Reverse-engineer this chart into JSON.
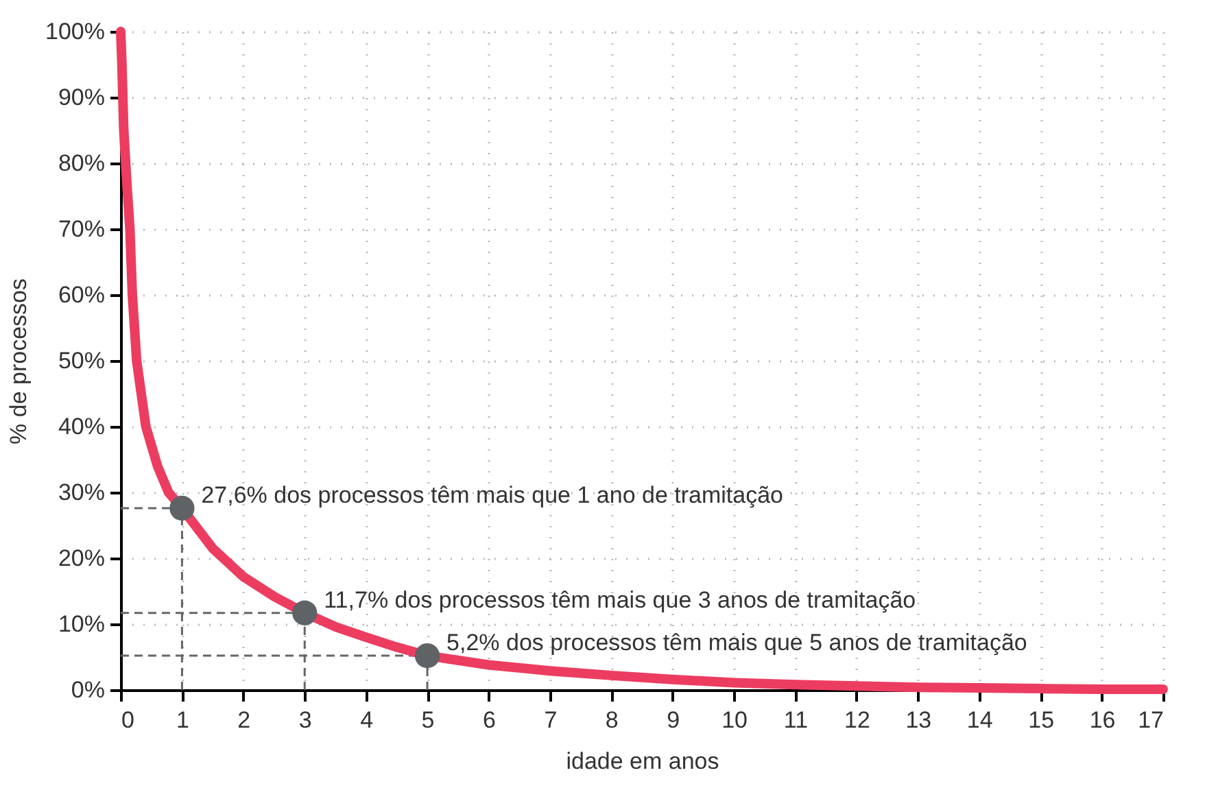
{
  "chart_data": {
    "type": "line",
    "xlabel": "idade em anos",
    "ylabel": "% de processos",
    "series": [
      {
        "type": "line",
        "color": "#ec3d60",
        "x": [
          0,
          0.02,
          0.05,
          0.1,
          0.15,
          0.19,
          0.26,
          0.41,
          0.6,
          0.78,
          1,
          1.5,
          2,
          2.5,
          3,
          3.5,
          4,
          4.5,
          5,
          6,
          7,
          8,
          9,
          10,
          11,
          12,
          13,
          14,
          15,
          16,
          17
        ],
        "values": [
          100,
          95,
          85,
          77,
          70,
          60,
          50,
          40,
          34,
          30,
          27.6,
          21.5,
          17.2,
          14.2,
          11.7,
          9.6,
          8,
          6.5,
          5.2,
          3.8,
          2.9,
          2.2,
          1.6,
          1.1,
          0.8,
          0.6,
          0.4,
          0.3,
          0.2,
          0.1,
          0.1
        ]
      },
      {
        "type": "scatter",
        "color": "#5f6366",
        "x": [
          1,
          3,
          5
        ],
        "values": [
          27.6,
          11.7,
          5.2
        ]
      }
    ],
    "annotations": [
      {
        "text": "27,6% dos processos têm mais que 1 ano de tramitação",
        "x": 1,
        "y": 27.6
      },
      {
        "text": "11,7% dos processos têm mais que 3 anos de tramitação",
        "x": 3,
        "y": 11.7
      },
      {
        "text": "5,2% dos processos têm mais que 5 anos de tramitação",
        "x": 5,
        "y": 5.2
      }
    ],
    "xlim": [
      0,
      17
    ],
    "xticks": [
      0,
      1,
      2,
      3,
      4,
      5,
      6,
      7,
      8,
      9,
      10,
      11,
      12,
      13,
      14,
      15,
      16,
      17
    ],
    "ylim": [
      0,
      100
    ],
    "yticks": [
      {
        "value": 0,
        "label": "0%"
      },
      {
        "value": 10,
        "label": "10%"
      },
      {
        "value": 20,
        "label": "20%"
      },
      {
        "value": 30,
        "label": "30%"
      },
      {
        "value": 40,
        "label": "40%"
      },
      {
        "value": 50,
        "label": "50%"
      },
      {
        "value": 60,
        "label": "60%"
      },
      {
        "value": 70,
        "label": "70%"
      },
      {
        "value": 80,
        "label": "80%"
      },
      {
        "value": 90,
        "label": "90%"
      },
      {
        "value": 100,
        "label": "100%"
      }
    ],
    "grid": true
  }
}
